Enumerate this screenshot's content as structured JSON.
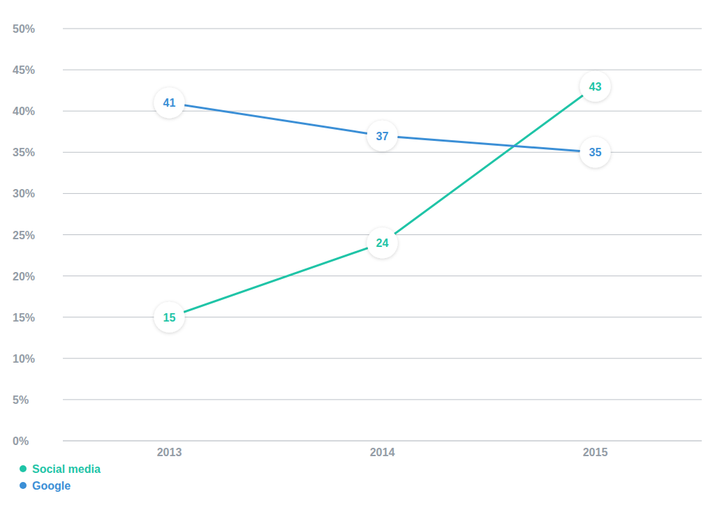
{
  "chart_data": {
    "type": "line",
    "categories": [
      "2013",
      "2014",
      "2015"
    ],
    "series": [
      {
        "name": "Social media",
        "color": "#1fc4a7",
        "marker": "circle",
        "values": [
          15,
          24,
          43
        ]
      },
      {
        "name": "Google",
        "color": "#3b8fd6",
        "marker": "circle",
        "values": [
          41,
          37,
          35
        ]
      }
    ],
    "ylim": [
      0,
      50
    ],
    "yticks": [
      {
        "value": 0,
        "label": "0%"
      },
      {
        "value": 5,
        "label": "5%"
      },
      {
        "value": 10,
        "label": "10%"
      },
      {
        "value": 15,
        "label": "15%"
      },
      {
        "value": 20,
        "label": "20%"
      },
      {
        "value": 25,
        "label": "25%"
      },
      {
        "value": 30,
        "label": "30%"
      },
      {
        "value": 35,
        "label": "35%"
      },
      {
        "value": 40,
        "label": "40%"
      },
      {
        "value": 45,
        "label": "45%"
      },
      {
        "value": 50,
        "label": "50%"
      }
    ],
    "grid": true,
    "legend": "bottom-left",
    "data_labels": true
  }
}
